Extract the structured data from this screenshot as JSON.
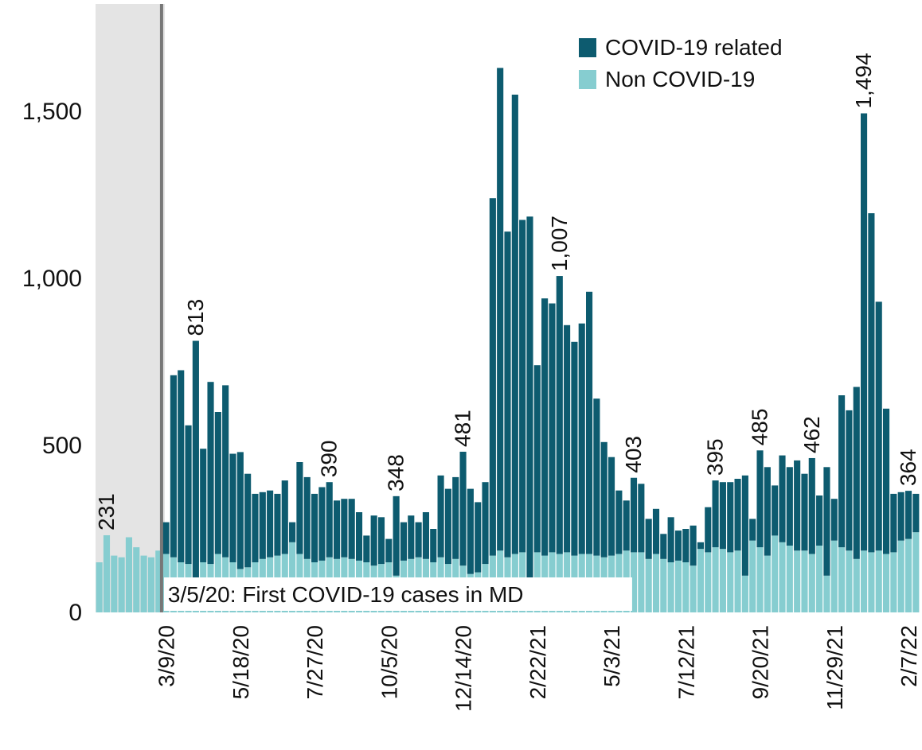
{
  "chart_data": {
    "type": "stacked_bar",
    "annotation": "3/5/20: First COVID-19 cases in MD",
    "categories": [
      null,
      null,
      null,
      null,
      null,
      null,
      null,
      null,
      null,
      "3/9/20",
      null,
      null,
      null,
      null,
      null,
      null,
      null,
      null,
      null,
      "5/18/20",
      null,
      null,
      null,
      null,
      null,
      null,
      null,
      null,
      null,
      "7/27/20",
      null,
      null,
      null,
      null,
      null,
      null,
      null,
      null,
      null,
      "10/5/20",
      null,
      null,
      null,
      null,
      null,
      null,
      null,
      null,
      null,
      "12/14/20",
      null,
      null,
      null,
      null,
      null,
      null,
      null,
      null,
      null,
      "2/22/21",
      null,
      null,
      null,
      null,
      null,
      null,
      null,
      null,
      null,
      "5/3/21",
      null,
      null,
      null,
      null,
      null,
      null,
      null,
      null,
      null,
      "7/12/21",
      null,
      null,
      null,
      null,
      null,
      null,
      null,
      null,
      null,
      "9/20/21",
      null,
      null,
      null,
      null,
      null,
      null,
      null,
      null,
      null,
      "11/29/21",
      null,
      null,
      null,
      null,
      null,
      null,
      null,
      null,
      null,
      "2/7/22",
      null
    ],
    "series": [
      {
        "name": "COVID-19 related",
        "color": "#0d5b6f",
        "values": [
          null,
          null,
          null,
          null,
          null,
          null,
          null,
          null,
          null,
          95,
          545,
          575,
          415,
          713,
          340,
          545,
          425,
          515,
          325,
          350,
          280,
          205,
          200,
          200,
          185,
          220,
          60,
          275,
          245,
          205,
          220,
          225,
          175,
          175,
          180,
          145,
          80,
          150,
          140,
          70,
          238,
          115,
          130,
          105,
          140,
          100,
          245,
          225,
          245,
          341,
          255,
          210,
          245,
          1070,
          1445,
          975,
          1375,
          995,
          1085,
          560,
          770,
          745,
          832,
          680,
          640,
          690,
          785,
          470,
          345,
          295,
          190,
          150,
          223,
          205,
          120,
          135,
          75,
          135,
          90,
          100,
          120,
          20,
          135,
          200,
          200,
          210,
          215,
          300,
          65,
          290,
          265,
          150,
          260,
          235,
          270,
          230,
          287,
          150,
          325,
          125,
          455,
          420,
          515,
          1309,
          1015,
          745,
          435,
          175,
          145,
          144,
          115
        ]
      },
      {
        "name": "Non COVID-19",
        "color": "#86cdd0",
        "values": [
          150,
          231,
          170,
          165,
          225,
          195,
          170,
          165,
          185,
          175,
          165,
          150,
          145,
          100,
          150,
          145,
          175,
          165,
          150,
          130,
          135,
          150,
          160,
          165,
          170,
          175,
          210,
          175,
          160,
          150,
          155,
          165,
          160,
          165,
          160,
          155,
          150,
          140,
          145,
          150,
          110,
          155,
          160,
          165,
          160,
          150,
          165,
          145,
          160,
          140,
          115,
          120,
          145,
          170,
          185,
          165,
          175,
          180,
          100,
          180,
          170,
          180,
          175,
          180,
          170,
          175,
          175,
          170,
          165,
          170,
          175,
          185,
          180,
          180,
          160,
          175,
          160,
          150,
          155,
          150,
          140,
          190,
          180,
          195,
          190,
          180,
          185,
          110,
          215,
          195,
          170,
          230,
          210,
          200,
          185,
          185,
          175,
          200,
          110,
          215,
          195,
          185,
          160,
          185,
          180,
          185,
          175,
          180,
          215,
          220,
          240
        ]
      }
    ],
    "total_labels": [
      null,
      "231",
      null,
      null,
      null,
      null,
      null,
      null,
      null,
      null,
      null,
      null,
      null,
      "813",
      null,
      null,
      null,
      null,
      null,
      null,
      null,
      null,
      null,
      null,
      null,
      null,
      null,
      null,
      null,
      null,
      null,
      "390",
      null,
      null,
      null,
      null,
      null,
      null,
      null,
      null,
      "348",
      null,
      null,
      null,
      null,
      null,
      null,
      null,
      null,
      "481",
      null,
      null,
      null,
      null,
      null,
      null,
      null,
      null,
      null,
      null,
      null,
      null,
      "1,007",
      null,
      null,
      null,
      null,
      null,
      null,
      null,
      null,
      null,
      "403",
      null,
      null,
      null,
      null,
      null,
      null,
      null,
      null,
      null,
      null,
      "395",
      null,
      null,
      null,
      null,
      null,
      "485",
      null,
      null,
      null,
      null,
      null,
      null,
      "462",
      null,
      null,
      null,
      null,
      null,
      null,
      "1,494",
      null,
      null,
      null,
      null,
      null,
      "364",
      null
    ],
    "ylim": [
      0,
      1800
    ],
    "yticks": [
      0,
      500,
      {
        "value": 1000,
        "label": "1,000"
      },
      {
        "value": 1500,
        "label": "1,500"
      }
    ],
    "legend": "top-right"
  }
}
